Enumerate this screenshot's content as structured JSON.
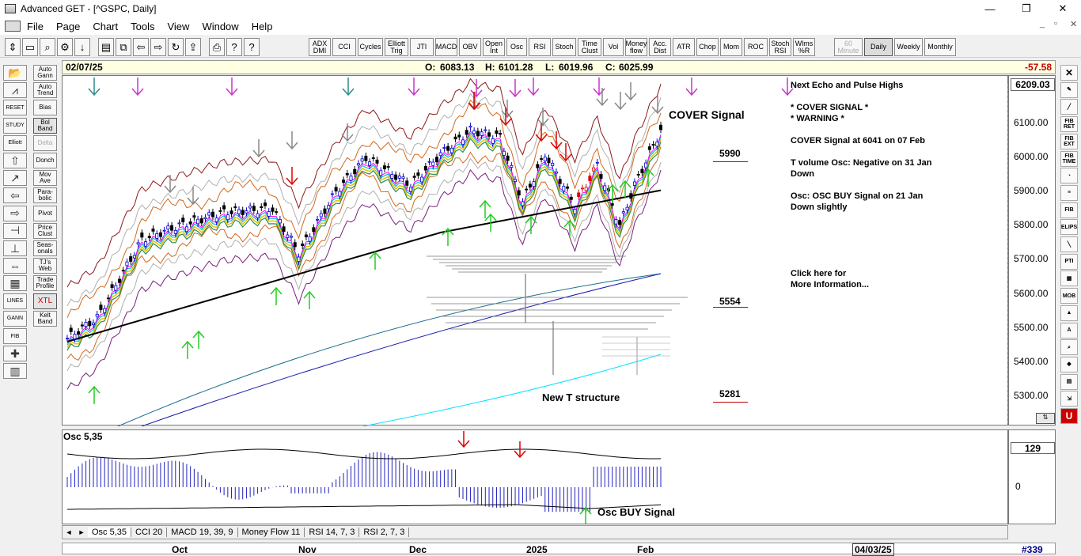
{
  "window": {
    "title": "Advanced GET - [^GSPC, Daily]",
    "minimize": "—",
    "restore": "❐",
    "close": "✕"
  },
  "menu": [
    "File",
    "Page",
    "Chart",
    "Tools",
    "View",
    "Window",
    "Help"
  ],
  "mdi_controls": [
    "_",
    "▫",
    "✕"
  ],
  "toolbar": {
    "icons": [
      "pointer-icon",
      "open-icon",
      "zoom-icon",
      "gear-icon",
      "move-icon",
      "page-icon",
      "copy-icon",
      "back-icon",
      "forward-icon",
      "refresh-icon",
      "export-icon",
      "print-icon",
      "help-icon",
      "whatsthis-icon"
    ],
    "studies": [
      "ADX\nDMI",
      "CCI",
      "Cycles",
      "Elliott\nTrig",
      "JTI",
      "MACD",
      "OBV",
      "Open\nInt",
      "Osc",
      "RSI",
      "Stoch",
      "Time\nClust",
      "Vol",
      "Money\nflow",
      "Acc.\nDist",
      "ATR",
      "Chop",
      "Mom",
      "ROC",
      "Stoch\nRSI",
      "Wlms\n%R"
    ],
    "periods": [
      "60\nMinute",
      "Daily",
      "Weekly",
      "Monthly"
    ],
    "selected_period": "Daily"
  },
  "left_buttons": [
    "Auto\nGann",
    "Auto\nTrend",
    "Bias",
    "Bol\nBand",
    "Delta",
    "Donch",
    "Mov\nAve",
    "Para-\nbolic",
    "Pivot",
    "Price\nClust",
    "Seas-\nonals",
    "TJ's\nWeb",
    "Trade\nProfile",
    "XTL",
    "Kelt\nBand"
  ],
  "left_icons": [
    "open-folder",
    "gann-fan",
    "reset",
    "study",
    "elliott",
    "arrow-up",
    "arrow-wave",
    "arrow-left",
    "arrow-right",
    "bracket",
    "split",
    "align",
    "grid",
    "lines",
    "gann",
    "fib",
    "crosshair",
    "properties"
  ],
  "left_icon_labels": [
    "",
    "",
    "RESET",
    "STUDY",
    "Elliott",
    "",
    "",
    "",
    "",
    "",
    "",
    "",
    "",
    "LINES",
    "GANN",
    "FIB",
    "",
    ""
  ],
  "info": {
    "date": "02/07/25",
    "open_label": "O:",
    "open": "6083.13",
    "high_label": "H:",
    "high": "6101.28",
    "low_label": "L:",
    "low": "6019.96",
    "close_label": "C:",
    "close": "6025.99",
    "change": "-57.58"
  },
  "price_axis": {
    "last": "6209.03",
    "ticks": [
      "6100.00",
      "6000.00",
      "5900.00",
      "5800.00",
      "5700.00",
      "5600.00",
      "5500.00",
      "5400.00",
      "5300.00"
    ]
  },
  "annotations": {
    "cover_signal": "COVER Signal",
    "new_t_structure": "New T structure",
    "level_5990": "5990",
    "level_5554": "5554",
    "level_5281": "5281",
    "side_text_1": "Next Echo and Pulse Highs",
    "side_text_2": "* COVER SIGNAL *\n* WARNING *",
    "side_text_3": "COVER Signal at 6041 on 07 Feb",
    "side_text_4": "T volume Osc: Negative on 31 Jan\nDown",
    "side_text_5": "Osc: OSC BUY Signal on 21 Jan\nDown slightly",
    "side_text_6": "Click here for\nMore Information..."
  },
  "osc": {
    "label": "Osc 5,35",
    "value": "129",
    "zero": "0",
    "buy_signal": "Osc BUY Signal"
  },
  "tabs": [
    "Osc 5,35",
    "CCI 20",
    "MACD 19, 39, 9",
    "Money Flow 11",
    "RSI 14, 7, 3",
    "RSI 2, 7, 3"
  ],
  "tab_nav": [
    "◄",
    "►"
  ],
  "date_axis": {
    "months": [
      "Oct",
      "Nov",
      "Dec",
      "2025",
      "Feb"
    ],
    "cursor_date": "04/03/25",
    "bar_count": "#339"
  },
  "right_icons": [
    "close-icon",
    "pencil-icon",
    "brush-icon",
    "fib-ret-icon",
    "fib-ext-icon",
    "fib-time-icon",
    "fib-fan-icon",
    "lines-icon",
    "fib-arcs-icon",
    "ellipse-icon",
    "diagonal-icon",
    "pti-icon",
    "grid-icon",
    "mob-icon",
    "up-icon",
    "text-icon",
    "zoom-icon",
    "paint-icon",
    "calendar-icon",
    "expand-icon",
    "undo-icon"
  ],
  "right_labels": [
    "✕",
    "✎",
    "╱",
    "FIB\nRET",
    "FIB\nEXT",
    "FIB\nTIME",
    "◔",
    "≡",
    "FIB",
    "ELIPS",
    "╲",
    "PTI",
    "▦",
    "MOB",
    "▲",
    "A",
    "⌕",
    "◆",
    "▤",
    "⇲",
    "U"
  ]
}
